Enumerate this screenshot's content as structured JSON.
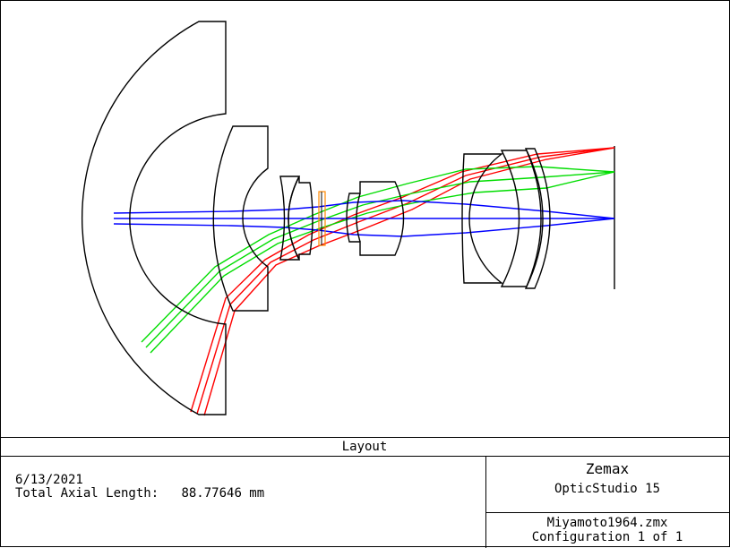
{
  "window": {
    "title": "Layout"
  },
  "info": {
    "date": "6/13/2021",
    "axial_label": "Total Axial Length:",
    "axial_value": "88.77646 mm",
    "company": "Zemax",
    "product": "OpticStudio 15",
    "file": "Miyamoto1964.zmx",
    "configuration": "Configuration 1 of 1"
  },
  "ray_colors": {
    "field_1": "#0000ff",
    "field_2": "#00dd00",
    "field_3": "#ff0000",
    "stop": "#ff8800"
  },
  "elements": [
    "front-meniscus-lens",
    "second-meniscus-lens",
    "doublet-lens",
    "aperture-stop",
    "middle-lens",
    "rear-meniscus-lens",
    "rear-positive-lens",
    "image-plane"
  ]
}
